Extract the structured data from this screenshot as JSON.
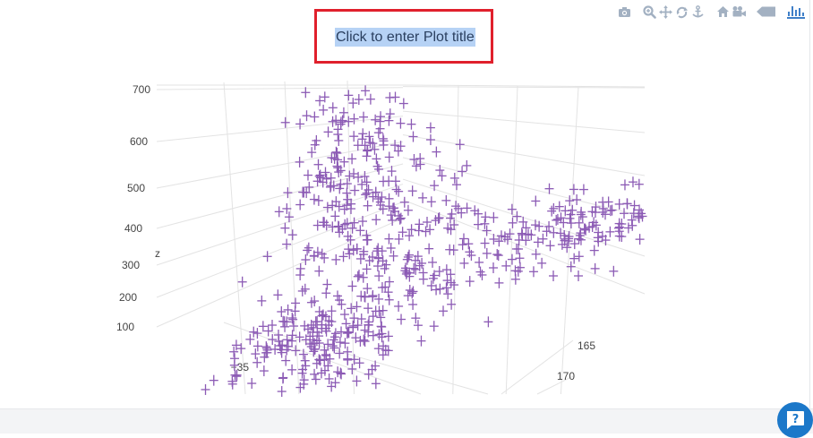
{
  "modebar": {
    "groups": [
      [
        "camera-icon"
      ],
      [
        "zoom-icon",
        "pan-icon",
        "orbit-rotation-icon",
        "turntable-rotation-icon"
      ],
      [
        "home-icon",
        "camera-view-icon"
      ],
      [
        "hover-data-icon"
      ],
      [
        "plotly-logo-icon"
      ]
    ],
    "icon_color": "#a3b1c2",
    "logo_color": "#3f7fc8"
  },
  "title": {
    "text": "Click to enter Plot title",
    "highlight_color": "#b6d2f5",
    "annotation_border_color": "#e0202c"
  },
  "chart_data": {
    "type": "scatter3d",
    "marker": {
      "symbol": "cross",
      "color": "#8c5bb5"
    },
    "zlabel": "z",
    "z_ticks": [
      "700",
      "600",
      "500",
      "400",
      "300",
      "200",
      "100"
    ],
    "x_ticks_visible": [
      "−35"
    ],
    "y_ticks_visible": [
      "165",
      "170"
    ],
    "grid": true,
    "clusters": [
      {
        "center": [
          -35,
          160,
          110
        ],
        "spread": [
          5,
          2,
          45
        ],
        "count": 190
      },
      {
        "center": [
          -32,
          160,
          420
        ],
        "spread": [
          3,
          2,
          110
        ],
        "count": 170
      },
      {
        "center": [
          -28,
          161,
          310
        ],
        "spread": [
          5,
          2,
          70
        ],
        "count": 100
      },
      {
        "center": [
          -24,
          162,
          190
        ],
        "spread": [
          6,
          2,
          45
        ],
        "count": 80
      },
      {
        "center": [
          -12,
          166,
          210
        ],
        "spread": [
          5,
          2,
          35
        ],
        "count": 90
      },
      {
        "center": [
          -5,
          168,
          180
        ],
        "spread": [
          5,
          2,
          30
        ],
        "count": 55
      },
      {
        "center": [
          -10,
          165,
          590
        ],
        "spread": [
          3,
          2,
          25
        ],
        "count": 12
      }
    ],
    "outliers": [
      [
        -29,
        163,
        520
      ],
      [
        -27,
        164,
        380
      ],
      [
        -33,
        159,
        430
      ],
      [
        -18,
        167,
        170
      ],
      [
        -16,
        169,
        95
      ],
      [
        -14,
        170,
        80
      ],
      [
        -25,
        163,
        260
      ],
      [
        -20,
        166,
        150
      ]
    ]
  },
  "help": {
    "icon": "help-chat-icon",
    "color": "#1c78c9"
  }
}
